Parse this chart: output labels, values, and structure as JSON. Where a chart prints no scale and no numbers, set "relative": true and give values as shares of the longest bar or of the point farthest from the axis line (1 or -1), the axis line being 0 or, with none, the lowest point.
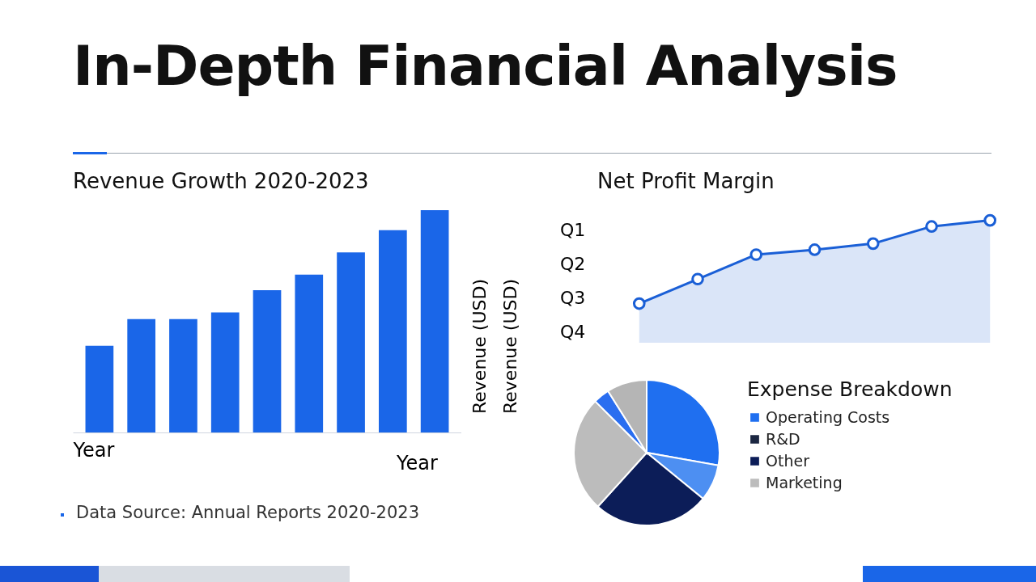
{
  "chart_data": [
    {
      "type": "other",
      "title": "In-Depth Financial Analysis"
    },
    {
      "type": "bar",
      "title": "Revenue Growth 2020-2023",
      "xlabel": "Year",
      "ylabel": "Revenue (USD)",
      "relative": true,
      "color": "#1a66e8",
      "categories": [
        null,
        null,
        null,
        null,
        null,
        null,
        null,
        null,
        null
      ],
      "values": [
        0.39,
        0.51,
        0.51,
        0.54,
        0.64,
        0.71,
        0.81,
        0.91,
        1
      ],
      "annotations": [
        "Year",
        "Revenue (USD)",
        "Data Source: Annual Reports 2020-2023"
      ]
    },
    {
      "type": "area",
      "title": "Net Profit Margin",
      "color": "#1a5fd6",
      "marker": "circle",
      "categories": [
        null,
        null,
        null,
        null,
        null,
        null,
        null
      ],
      "relative": true,
      "values": [
        0.32,
        0.52,
        0.72,
        0.76,
        0.81,
        0.95,
        1
      ],
      "annotations": [
        "Q1",
        "Q2",
        "Q3",
        "Q4"
      ]
    },
    {
      "type": "pie",
      "legend_title": "Expense Breakdown",
      "legend": "right",
      "categories": [
        "Operating Costs",
        null,
        "R&D",
        "Other",
        "Marketing",
        null,
        null
      ],
      "values": [
        27.8,
        8.1,
        null,
        25.8,
        25.8,
        3.6,
        8.9
      ],
      "colors": [
        "#1f6ff0",
        "#4d8ff2",
        "#1c2742",
        "#0c1d58",
        "#bcbcbc",
        "#2a6ef0",
        "#b5b5b5"
      ]
    }
  ]
}
